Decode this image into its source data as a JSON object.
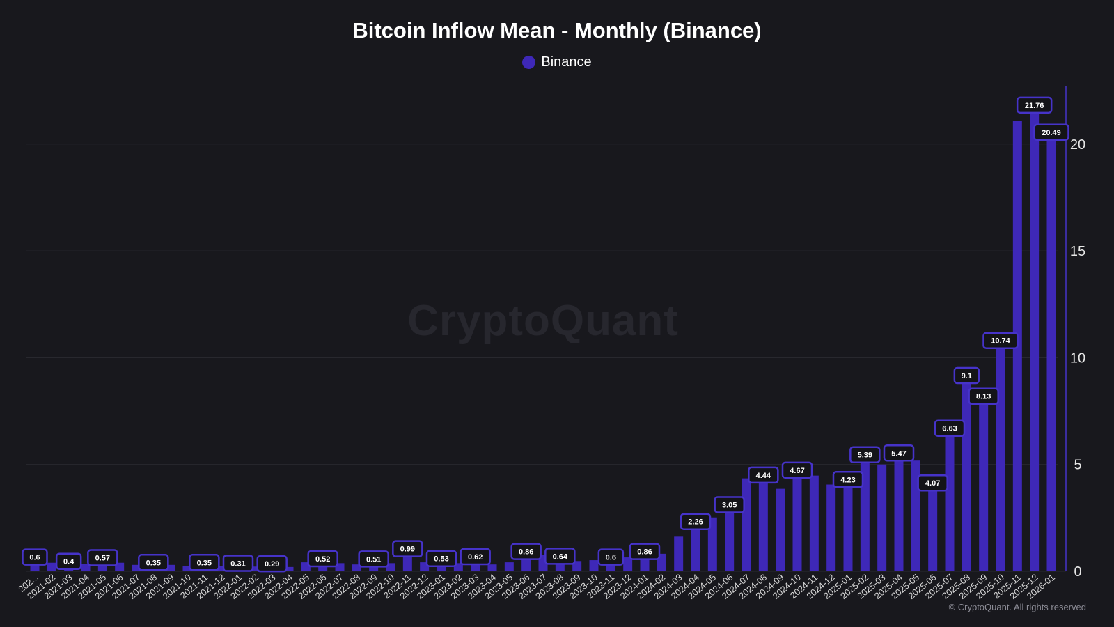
{
  "colors": {
    "background": "#18181d",
    "bar": "#3e28b8",
    "label_border": "#4633c9",
    "label_bg": "#141418",
    "grid": "#2a2a31",
    "axis": "#4633c9",
    "tick_text": "#e6e6e6"
  },
  "watermark": "CryptoQuant",
  "copyright": "© CryptoQuant. All rights reserved",
  "chart_data": {
    "type": "bar",
    "title": "Bitcoin Inflow Mean - Monthly (Binance)",
    "xlabel": "",
    "ylabel": "",
    "ylim": [
      0,
      22.7
    ],
    "yticks": [
      0,
      5,
      10,
      15,
      20
    ],
    "grid": true,
    "legend": "top-center",
    "categories": [
      "202...",
      "2021-02",
      "2021-03",
      "2021-04",
      "2021-05",
      "2021-06",
      "2021-07",
      "2021-08",
      "2021-09",
      "2021-10",
      "2021-11",
      "2021-12",
      "2022-01",
      "2022-02",
      "2022-03",
      "2022-04",
      "2022-05",
      "2022-06",
      "2022-07",
      "2022-08",
      "2022-09",
      "2022-10",
      "2022-11",
      "2022-12",
      "2023-01",
      "2023-02",
      "2023-03",
      "2023-04",
      "2023-05",
      "2023-06",
      "2023-07",
      "2023-08",
      "2023-09",
      "2023-10",
      "2023-11",
      "2023-12",
      "2024-01",
      "2024-02",
      "2024-03",
      "2024-04",
      "2024-05",
      "2024-06",
      "2024-07",
      "2024-08",
      "2024-09",
      "2024-10",
      "2024-11",
      "2024-12",
      "2025-01",
      "2025-02",
      "2025-03",
      "2025-04",
      "2025-05",
      "2025-06",
      "2025-07",
      "2025-08",
      "2025-09",
      "2025-10",
      "2025-11",
      "2025-12",
      "2026-01"
    ],
    "series": [
      {
        "name": "Binance",
        "color": "#3e28b8",
        "values": [
          0.6,
          0.4,
          0.4,
          0.35,
          0.57,
          0.4,
          0.3,
          0.35,
          0.3,
          0.25,
          0.35,
          0.25,
          0.31,
          0.22,
          0.29,
          0.2,
          0.42,
          0.52,
          0.38,
          0.32,
          0.51,
          0.38,
          0.99,
          0.42,
          0.53,
          0.38,
          0.62,
          0.32,
          0.42,
          0.86,
          0.78,
          0.64,
          0.48,
          0.52,
          0.6,
          0.65,
          0.86,
          0.82,
          1.62,
          2.26,
          2.52,
          3.05,
          4.35,
          4.44,
          3.86,
          4.67,
          4.48,
          4.06,
          4.23,
          5.39,
          5.0,
          5.47,
          5.18,
          4.07,
          6.63,
          9.1,
          8.13,
          10.74,
          21.1,
          21.76,
          20.49
        ]
      }
    ],
    "data_labels": [
      {
        "index": 0,
        "text": "0.6"
      },
      {
        "index": 2,
        "text": "0.4"
      },
      {
        "index": 4,
        "text": "0.57"
      },
      {
        "index": 7,
        "text": "0.35"
      },
      {
        "index": 10,
        "text": "0.35"
      },
      {
        "index": 12,
        "text": "0.31"
      },
      {
        "index": 14,
        "text": "0.29"
      },
      {
        "index": 17,
        "text": "0.52"
      },
      {
        "index": 20,
        "text": "0.51"
      },
      {
        "index": 22,
        "text": "0.99"
      },
      {
        "index": 24,
        "text": "0.53"
      },
      {
        "index": 26,
        "text": "0.62"
      },
      {
        "index": 29,
        "text": "0.86"
      },
      {
        "index": 31,
        "text": "0.64"
      },
      {
        "index": 34,
        "text": "0.6"
      },
      {
        "index": 36,
        "text": "0.86"
      },
      {
        "index": 39,
        "text": "2.26"
      },
      {
        "index": 41,
        "text": "3.05"
      },
      {
        "index": 43,
        "text": "4.44"
      },
      {
        "index": 45,
        "text": "4.67"
      },
      {
        "index": 48,
        "text": "4.23"
      },
      {
        "index": 49,
        "text": "5.39"
      },
      {
        "index": 51,
        "text": "5.47"
      },
      {
        "index": 53,
        "text": "4.07"
      },
      {
        "index": 54,
        "text": "6.63"
      },
      {
        "index": 55,
        "text": "9.1"
      },
      {
        "index": 56,
        "text": "8.13"
      },
      {
        "index": 57,
        "text": "10.74"
      },
      {
        "index": 59,
        "text": "21.76"
      },
      {
        "index": 60,
        "text": "20.49"
      }
    ]
  }
}
